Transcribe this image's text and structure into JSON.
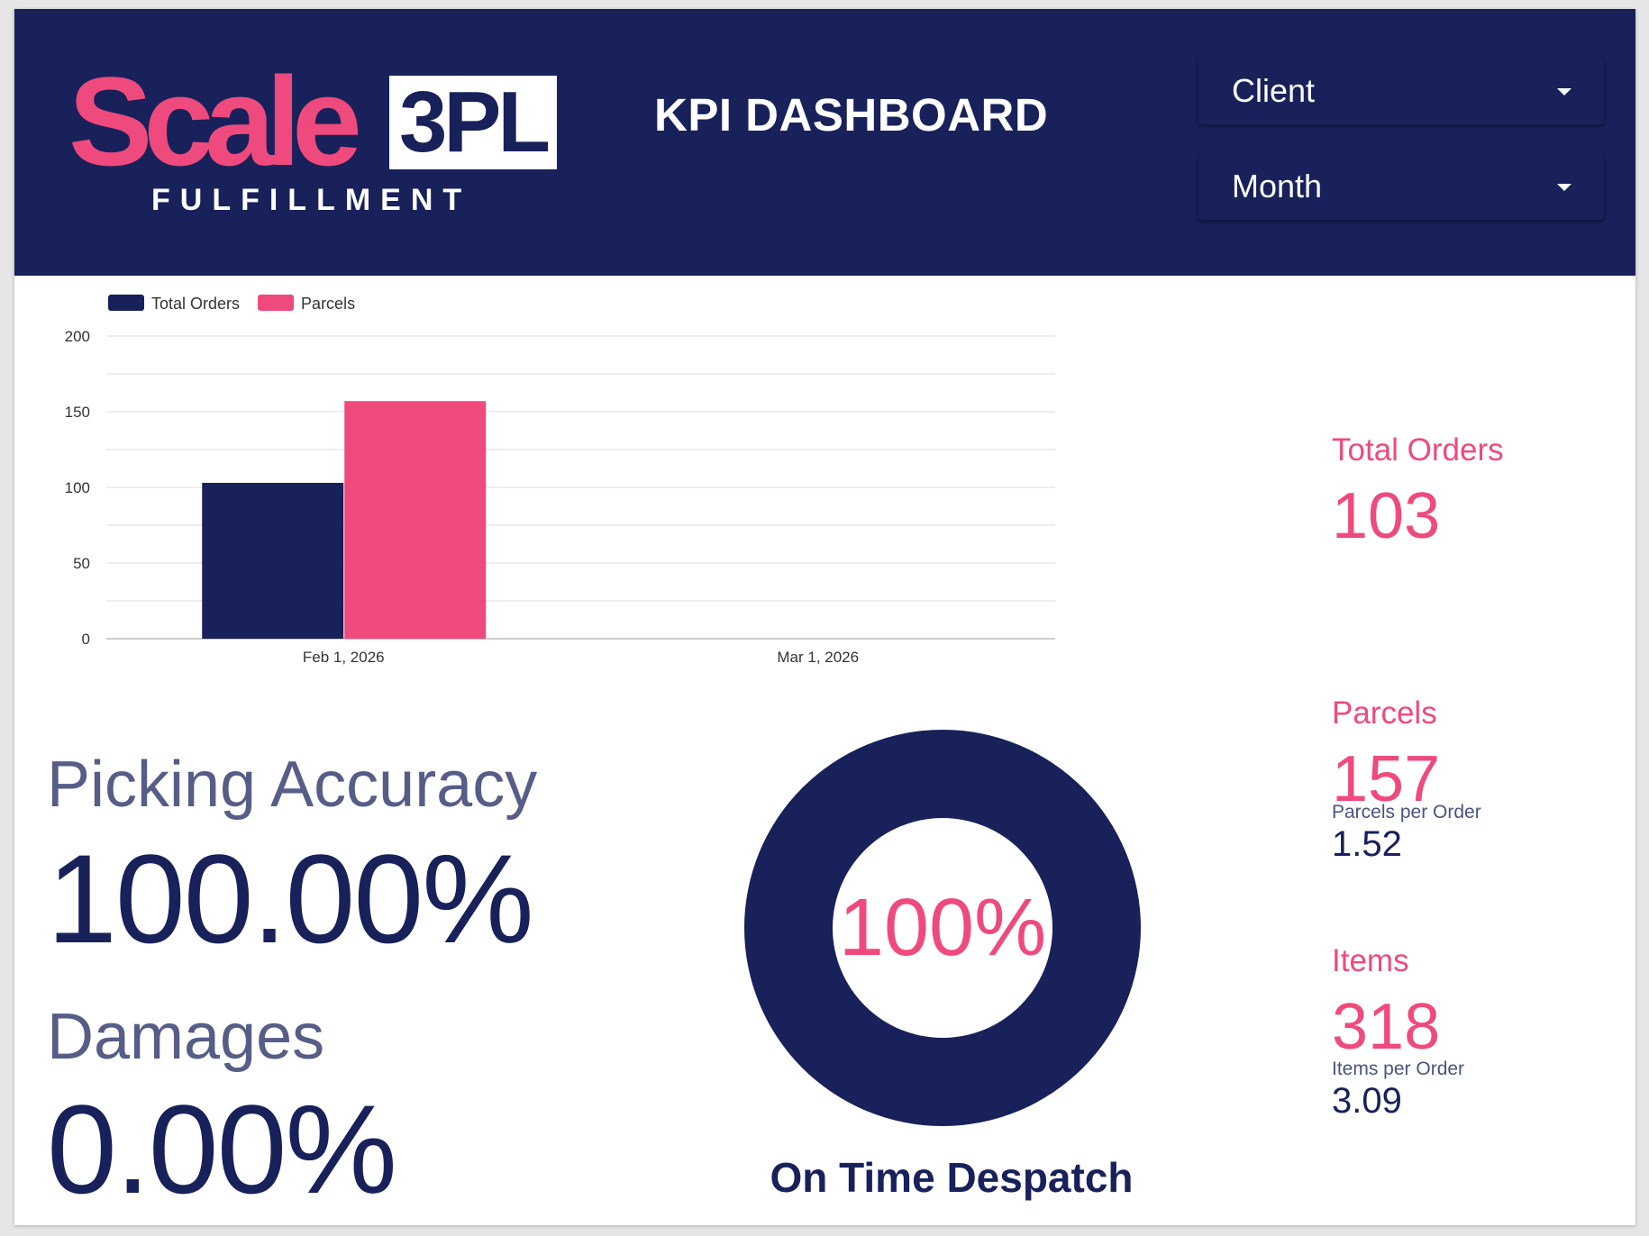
{
  "header": {
    "logo": {
      "scale_text": "Scale",
      "brand_text": "3PL",
      "sub_text": "FULFILLMENT"
    },
    "title": "KPI DASHBOARD",
    "filters": [
      {
        "label": "Client"
      },
      {
        "label": "Month"
      }
    ]
  },
  "colors": {
    "navy": "#18215a",
    "pink": "#ef4a7d",
    "muted": "#565d87"
  },
  "chart_data": {
    "type": "bar",
    "categories": [
      "Feb 1, 2026",
      "Mar 1, 2026"
    ],
    "series": [
      {
        "name": "Total Orders",
        "color": "#18215a",
        "values": [
          103,
          null
        ]
      },
      {
        "name": "Parcels",
        "color": "#ef4a7d",
        "values": [
          157,
          null
        ]
      }
    ],
    "ylim": [
      0,
      200
    ],
    "yticks": [
      0,
      50,
      100,
      150,
      200
    ],
    "grid": true,
    "legend": "top-left"
  },
  "kpis": {
    "total_orders": {
      "label": "Total Orders",
      "value": "103"
    },
    "parcels": {
      "label": "Parcels",
      "value": "157",
      "sub_label": "Parcels per Order",
      "sub_value": "1.52"
    },
    "items": {
      "label": "Items",
      "value": "318",
      "sub_label": "Items per Order",
      "sub_value": "3.09"
    }
  },
  "picking_accuracy": {
    "label": "Picking Accuracy",
    "value": "100.00%"
  },
  "damages": {
    "label": "Damages",
    "value": "0.00%"
  },
  "on_time_despatch": {
    "label": "On Time Despatch",
    "value": "100%",
    "fraction": 1.0
  }
}
